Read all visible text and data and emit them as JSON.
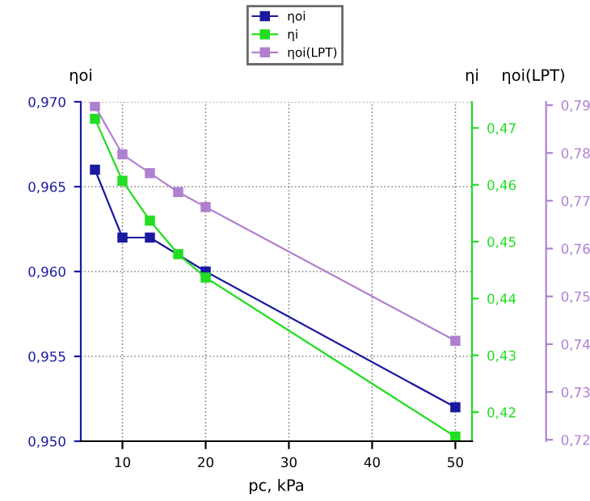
{
  "chart_data": {
    "type": "line",
    "xlabel": "pc, kPa",
    "ylabel": "ηoi",
    "y2label": "ηi",
    "y3label": "ηoi(LPT)",
    "xlim": [
      5,
      52
    ],
    "xticks": [
      10,
      20,
      30,
      40,
      50
    ],
    "ylim": [
      0.95,
      0.97
    ],
    "yticks": [
      {
        "value": 0.95,
        "label": "0,950"
      },
      {
        "value": 0.955,
        "label": "0,955"
      },
      {
        "value": 0.96,
        "label": "0,960"
      },
      {
        "value": 0.965,
        "label": "0,965"
      },
      {
        "value": 0.97,
        "label": "0,970"
      }
    ],
    "y2lim": [
      0.4149,
      0.4746
    ],
    "y2ticks": [
      {
        "value": 0.42,
        "label": "0,42"
      },
      {
        "value": 0.43,
        "label": "0,43"
      },
      {
        "value": 0.44,
        "label": "0,44"
      },
      {
        "value": 0.45,
        "label": "0,45"
      },
      {
        "value": 0.46,
        "label": "0,46"
      },
      {
        "value": 0.47,
        "label": "0,47"
      }
    ],
    "y3lim": [
      0.7197,
      0.7907
    ],
    "y3ticks": [
      {
        "value": 0.72,
        "label": "0,72"
      },
      {
        "value": 0.73,
        "label": "0,73"
      },
      {
        "value": 0.74,
        "label": "0,74"
      },
      {
        "value": 0.75,
        "label": "0,75"
      },
      {
        "value": 0.76,
        "label": "0,76"
      },
      {
        "value": 0.77,
        "label": "0,77"
      },
      {
        "value": 0.78,
        "label": "0,78"
      },
      {
        "value": 0.79,
        "label": "0,79"
      }
    ],
    "grid": true,
    "legend": "top",
    "marker": "square",
    "line_style": "solid",
    "series": [
      {
        "name": "ηoi",
        "color": "#1a1aa0",
        "x": [
          6.7,
          10,
          13.3,
          20,
          50
        ],
        "values": [
          0.966,
          0.962,
          0.962,
          0.96,
          0.952
        ]
      },
      {
        "name": "ηi",
        "color": "#22dd22",
        "axis": "y2",
        "x": [
          6.7,
          10,
          13.3,
          16.7,
          20,
          50
        ],
        "values": [
          0.4716,
          0.4607,
          0.4537,
          0.4478,
          0.4437,
          0.4157
        ]
      },
      {
        "name": "ηoi(LPT)",
        "color": "#b080d0",
        "axis": "y3",
        "x": [
          6.7,
          10,
          13.3,
          16.7,
          20,
          50
        ],
        "values": [
          0.7898,
          0.7797,
          0.7758,
          0.7718,
          0.7687,
          0.7407
        ]
      }
    ]
  }
}
